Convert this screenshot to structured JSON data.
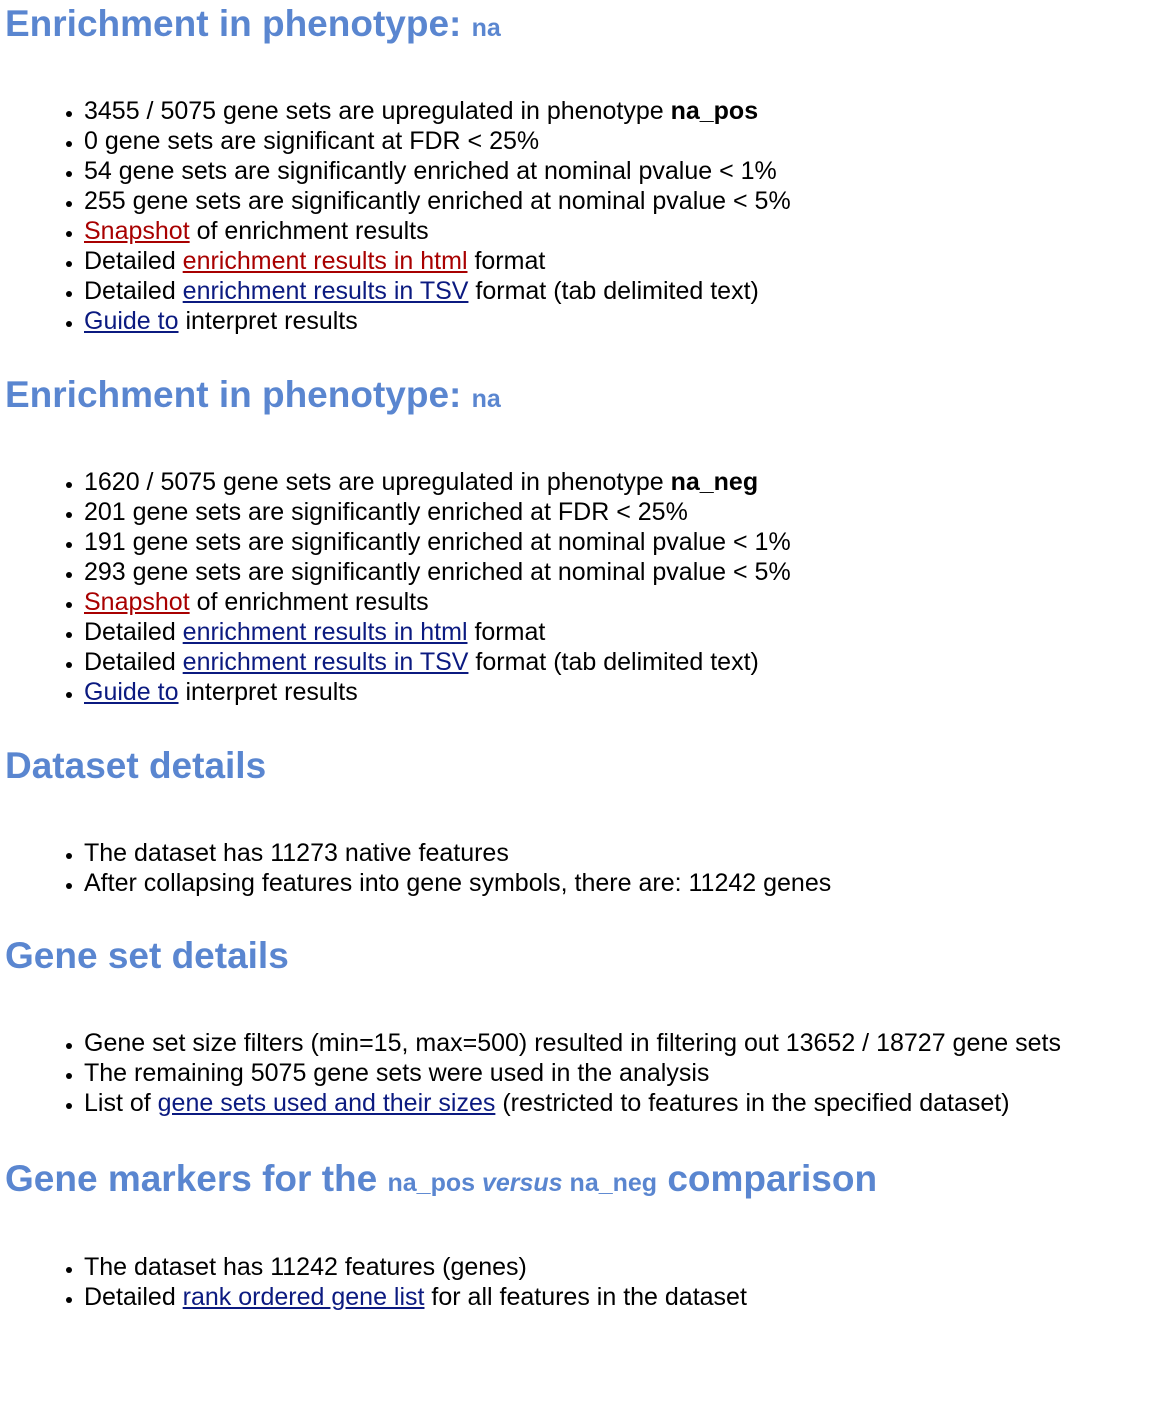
{
  "sections": [
    {
      "heading": "Enrichment in phenotype:",
      "heading_sub": "na",
      "items": {
        "upregulated_prefix": "3455 / 5075 gene sets are upregulated in phenotype ",
        "upregulated_phenotype": "na_pos",
        "fdr": "0 gene sets are significant at FDR < 25%",
        "p1": "54 gene sets are significantly enriched at nominal pvalue < 1%",
        "p5": "255 gene sets are significantly enriched at nominal pvalue < 5%",
        "snapshot_link": "Snapshot",
        "snapshot_suffix": " of enrichment results",
        "html_prefix": "Detailed ",
        "html_link": "enrichment results in html",
        "html_suffix": " format",
        "tsv_prefix": "Detailed ",
        "tsv_link": "enrichment results in TSV",
        "tsv_suffix": " format (tab delimited text)",
        "guide_link": "Guide to",
        "guide_suffix": " interpret results"
      }
    },
    {
      "heading": "Enrichment in phenotype:",
      "heading_sub": "na",
      "items": {
        "upregulated_prefix": "1620 / 5075 gene sets are upregulated in phenotype ",
        "upregulated_phenotype": "na_neg",
        "fdr": "201 gene sets are significantly enriched at FDR < 25%",
        "p1": "191 gene sets are significantly enriched at nominal pvalue < 1%",
        "p5": "293 gene sets are significantly enriched at nominal pvalue < 5%",
        "snapshot_link": "Snapshot",
        "snapshot_suffix": " of enrichment results",
        "html_prefix": "Detailed ",
        "html_link": "enrichment results in html",
        "html_suffix": " format",
        "tsv_prefix": "Detailed ",
        "tsv_link": "enrichment results in TSV",
        "tsv_suffix": " format (tab delimited text)",
        "guide_link": "Guide to",
        "guide_suffix": " interpret results"
      }
    }
  ],
  "dataset_details": {
    "heading": "Dataset details",
    "native": "The dataset has 11273 native features",
    "collapsed": "After collapsing features into gene symbols, there are: 11242 genes"
  },
  "gene_set_details": {
    "heading": "Gene set details",
    "filters": "Gene set size filters (min=15, max=500) resulted in filtering out 13652 / 18727 gene sets",
    "remaining": "The remaining 5075 gene sets were used in the analysis",
    "list_prefix": "List of ",
    "list_link": "gene sets used and their sizes",
    "list_suffix": " (restricted to features in the specified dataset)"
  },
  "gene_markers": {
    "heading_prefix": "Gene markers for the ",
    "pos": "na_pos",
    "versus": "versus",
    "neg": "na_neg",
    "heading_suffix": "comparison",
    "features": "The dataset has 11242 features (genes)",
    "ranked_prefix": "Detailed ",
    "ranked_link": "rank ordered gene list",
    "ranked_suffix": " for all features in the dataset"
  },
  "colors": {
    "heading": "#5a86d0",
    "link_visited": "#a80000",
    "link": "#0b1a80"
  }
}
